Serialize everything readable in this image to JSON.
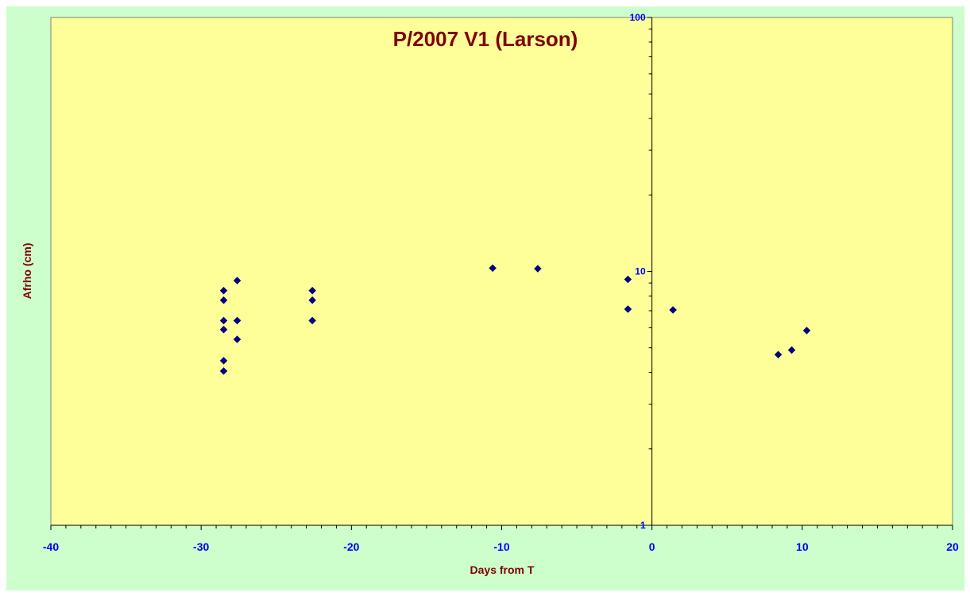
{
  "chart_data": {
    "type": "scatter",
    "title": "P/2007 V1 (Larson)",
    "xlabel": "Days from T",
    "ylabel": "Afrho (cm)",
    "xlim": [
      -40,
      20
    ],
    "ylim": [
      1,
      100
    ],
    "y_scale": "log",
    "x_ticks": [
      -40,
      -30,
      -20,
      -10,
      0,
      10,
      20
    ],
    "y_ticks": [
      1,
      10,
      100
    ],
    "grid": false,
    "legend": "none",
    "colors": {
      "outer_background": "#ccffcc",
      "plot_background": "#ffff99",
      "title": "#800000",
      "axis_title": "#800000",
      "tick_labels": "#0000ff",
      "marker": "#000080",
      "axis_line": "#000000"
    },
    "marker_shape": "diamond",
    "points": [
      {
        "x": -28.5,
        "y": 8.4
      },
      {
        "x": -28.5,
        "y": 7.7
      },
      {
        "x": -28.5,
        "y": 6.4
      },
      {
        "x": -28.5,
        "y": 5.9
      },
      {
        "x": -28.5,
        "y": 4.45
      },
      {
        "x": -28.5,
        "y": 4.05
      },
      {
        "x": -27.6,
        "y": 9.2
      },
      {
        "x": -27.6,
        "y": 6.4
      },
      {
        "x": -27.6,
        "y": 6.4
      },
      {
        "x": -27.6,
        "y": 5.4
      },
      {
        "x": -22.6,
        "y": 8.4
      },
      {
        "x": -22.6,
        "y": 7.7
      },
      {
        "x": -22.6,
        "y": 6.4
      },
      {
        "x": -10.6,
        "y": 10.3
      },
      {
        "x": -7.6,
        "y": 10.25
      },
      {
        "x": -1.6,
        "y": 9.3
      },
      {
        "x": -1.6,
        "y": 7.1
      },
      {
        "x": 1.4,
        "y": 7.05
      },
      {
        "x": 8.4,
        "y": 4.7
      },
      {
        "x": 9.3,
        "y": 4.9
      },
      {
        "x": 10.3,
        "y": 5.85
      }
    ]
  }
}
